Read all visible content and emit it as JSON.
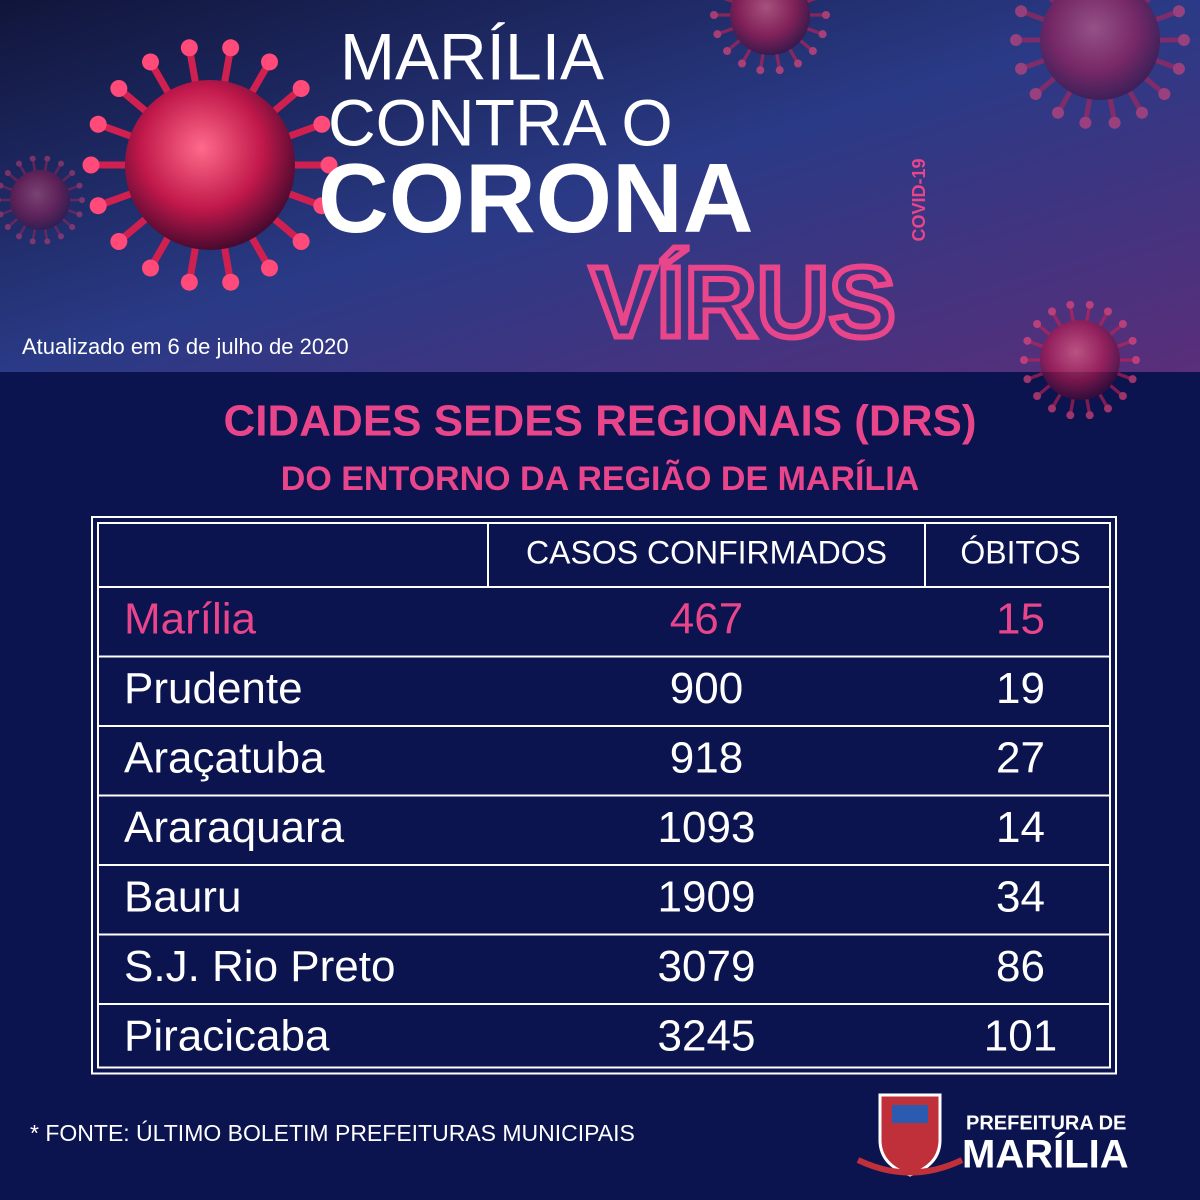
{
  "header": {
    "line1": "MARÍLIA",
    "line2": "CONTRA O",
    "line3": "CORONA",
    "tag": "COVID-19",
    "line4": "VÍRUS",
    "updated": "Atualizado em 6 de julho de 2020"
  },
  "title": {
    "line1": "CIDADES SEDES REGIONAIS (DRS)",
    "line2": "DO ENTORNO DA REGIÃO DE MARÍLIA"
  },
  "table": {
    "columns": [
      "CASOS CONFIRMADOS",
      "ÓBITOS"
    ],
    "rows": [
      [
        "Marília",
        467,
        15
      ],
      [
        "Prudente",
        900,
        19
      ],
      [
        "Araçatuba",
        918,
        27
      ],
      [
        "Araraquara",
        1093,
        14
      ],
      [
        "Bauru",
        1909,
        34
      ],
      [
        "S.J. Rio Preto",
        3079,
        86
      ],
      [
        "Piracicaba",
        3245,
        101
      ]
    ]
  },
  "footer": {
    "source": "* FONTE: ÚLTIMO BOLETIM PREFEITURAS MUNICIPAIS",
    "logo_line1": "PREFEITURA DE",
    "logo_line2": "MARÍLIA"
  }
}
